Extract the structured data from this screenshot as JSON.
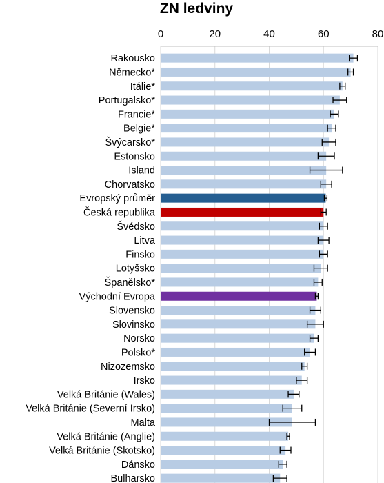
{
  "chart_data": {
    "type": "bar",
    "orientation": "horizontal",
    "title": "ZN ledviny",
    "xlabel": "",
    "ylabel": "",
    "xlim": [
      0,
      80
    ],
    "x_ticks": [
      "0",
      "20",
      "40",
      "60",
      "80"
    ],
    "x_axis_position": "top",
    "grid": true,
    "error_bars": true,
    "colors": {
      "default": "#b8cce4",
      "Evropský průměr": "#255e91",
      "Česká republika": "#c00000",
      "Východní Evropa": "#7030a0",
      "error_bar": "#000000",
      "grid": "#d9d9d9"
    },
    "categories": [
      "Rakousko",
      "Německo*",
      "Itálie*",
      "Portugalsko*",
      "Francie*",
      "Belgie*",
      "Švýcarsko*",
      "Estonsko",
      "Island",
      "Chorvatsko",
      "Evropský průměr",
      "Česká republika",
      "Švédsko",
      "Litva",
      "Finsko",
      "Lotyšsko",
      "Španělsko*",
      "Východní Evropa",
      "Slovensko",
      "Slovinsko",
      "Norsko",
      "Polsko*",
      "Nizozemsko",
      "Irsko",
      "Velká Británie (Wales)",
      "Velká Británie (Severní Irsko)",
      "Malta",
      "Velká Británie (Anglie)",
      "Velká Británie (Skotsko)",
      "Dánsko",
      "Bulharsko"
    ],
    "values": [
      71,
      70,
      67,
      66,
      64,
      63,
      62,
      61,
      61,
      61,
      60.8,
      60,
      60,
      60,
      60,
      59,
      58,
      57.5,
      57,
      57,
      56.5,
      55,
      53,
      52,
      49,
      48.5,
      48.5,
      47,
      46,
      45,
      44
    ],
    "error": [
      1.5,
      1.0,
      1.0,
      2.5,
      1.5,
      1.5,
      2.5,
      3.0,
      6.0,
      2.0,
      0.5,
      1.0,
      1.5,
      2.0,
      1.5,
      2.5,
      1.5,
      0.5,
      2.0,
      3.0,
      1.5,
      2.0,
      1.0,
      2.0,
      2.0,
      3.5,
      8.5,
      0.5,
      2.0,
      1.5,
      2.5
    ]
  }
}
